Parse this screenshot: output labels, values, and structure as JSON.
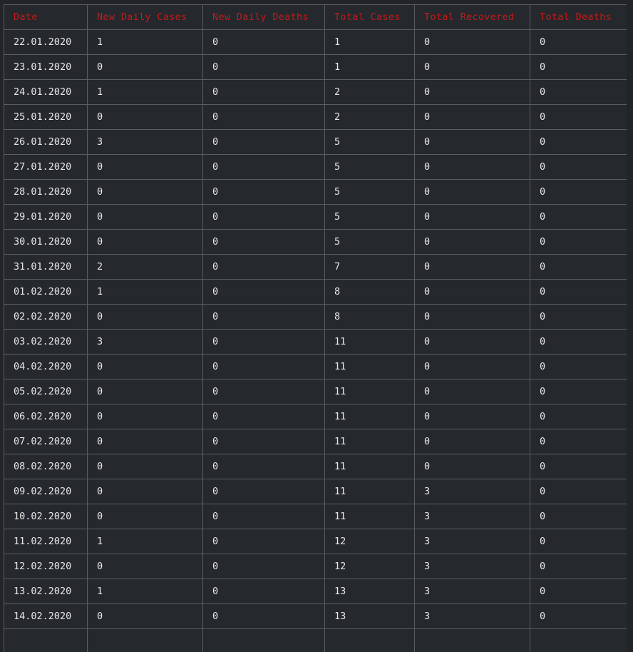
{
  "table": {
    "headers": [
      "Date",
      "New Daily Cases",
      "New Daily Deaths",
      "Total Cases",
      "Total Recovered",
      "Total Deaths"
    ],
    "rows": [
      [
        "22.01.2020",
        "1",
        "0",
        "1",
        "0",
        "0"
      ],
      [
        "23.01.2020",
        "0",
        "0",
        "1",
        "0",
        "0"
      ],
      [
        "24.01.2020",
        "1",
        "0",
        "2",
        "0",
        "0"
      ],
      [
        "25.01.2020",
        "0",
        "0",
        "2",
        "0",
        "0"
      ],
      [
        "26.01.2020",
        "3",
        "0",
        "5",
        "0",
        "0"
      ],
      [
        "27.01.2020",
        "0",
        "0",
        "5",
        "0",
        "0"
      ],
      [
        "28.01.2020",
        "0",
        "0",
        "5",
        "0",
        "0"
      ],
      [
        "29.01.2020",
        "0",
        "0",
        "5",
        "0",
        "0"
      ],
      [
        "30.01.2020",
        "0",
        "0",
        "5",
        "0",
        "0"
      ],
      [
        "31.01.2020",
        "2",
        "0",
        "7",
        "0",
        "0"
      ],
      [
        "01.02.2020",
        "1",
        "0",
        "8",
        "0",
        "0"
      ],
      [
        "02.02.2020",
        "0",
        "0",
        "8",
        "0",
        "0"
      ],
      [
        "03.02.2020",
        "3",
        "0",
        "11",
        "0",
        "0"
      ],
      [
        "04.02.2020",
        "0",
        "0",
        "11",
        "0",
        "0"
      ],
      [
        "05.02.2020",
        "0",
        "0",
        "11",
        "0",
        "0"
      ],
      [
        "06.02.2020",
        "0",
        "0",
        "11",
        "0",
        "0"
      ],
      [
        "07.02.2020",
        "0",
        "0",
        "11",
        "0",
        "0"
      ],
      [
        "08.02.2020",
        "0",
        "0",
        "11",
        "0",
        "0"
      ],
      [
        "09.02.2020",
        "0",
        "0",
        "11",
        "3",
        "0"
      ],
      [
        "10.02.2020",
        "0",
        "0",
        "11",
        "3",
        "0"
      ],
      [
        "11.02.2020",
        "1",
        "0",
        "12",
        "3",
        "0"
      ],
      [
        "12.02.2020",
        "0",
        "0",
        "12",
        "3",
        "0"
      ],
      [
        "13.02.2020",
        "1",
        "0",
        "13",
        "3",
        "0"
      ],
      [
        "14.02.2020",
        "0",
        "0",
        "13",
        "3",
        "0"
      ],
      [
        "",
        "",
        "",
        "",
        "",
        ""
      ]
    ]
  },
  "colors": {
    "header_text": "#c21b1b",
    "cell_text": "#e8e8e8",
    "background": "#25282c",
    "border": "#5a5d62"
  }
}
